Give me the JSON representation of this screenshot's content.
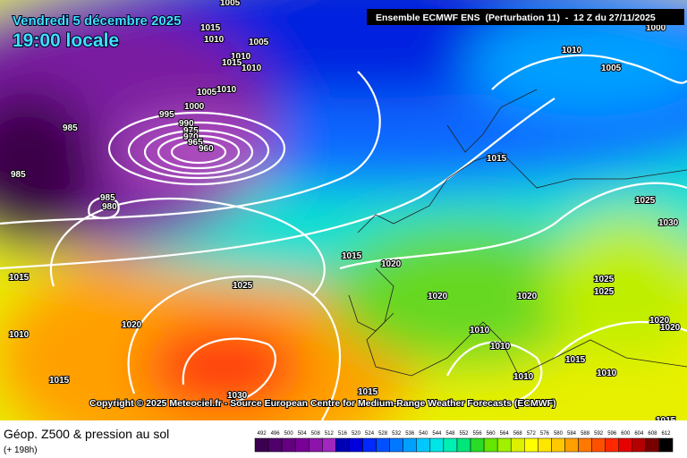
{
  "header": {
    "date": "Vendredi 5 décembre 2025",
    "time": "19:00 locale",
    "model": "Ensemble ECMWF ENS  (Perturbation 11)  -  12 Z du 27/11/2025"
  },
  "isobars": [
    1005,
    1015,
    1010,
    1005,
    1010,
    1015,
    1010,
    1005,
    1010,
    1000,
    995,
    990,
    985,
    975,
    970,
    965,
    960,
    985,
    985,
    980,
    1015,
    1010,
    1005,
    1000,
    1025,
    1030,
    1015,
    1020,
    1025,
    1020,
    1020,
    1025,
    1025,
    1020,
    1010,
    1010,
    1010,
    1020,
    1020,
    1015,
    1010,
    1010,
    1015,
    1030,
    1015,
    1015,
    1015
  ],
  "copyright": "Copyright © 2025 Meteociel.fr - Source European Centre for Medium-Range Weather Forecasts (ECMWF)",
  "footer": {
    "title": "Géop. Z500 & pression au sol",
    "lead": "(+ 198h)"
  },
  "scale": {
    "values": [
      492,
      496,
      500,
      504,
      508,
      512,
      516,
      520,
      524,
      528,
      532,
      536,
      540,
      544,
      548,
      552,
      556,
      560,
      564,
      568,
      572,
      576,
      580,
      584,
      588,
      592,
      596,
      600,
      604,
      608,
      612
    ],
    "colors": [
      "#3c0050",
      "#50006a",
      "#640080",
      "#780096",
      "#8c14aa",
      "#a028be",
      "#0000b4",
      "#0000dc",
      "#0028ff",
      "#0050ff",
      "#0078ff",
      "#00a0ff",
      "#00c8ff",
      "#00e6e6",
      "#00f0b4",
      "#00e678",
      "#28dc28",
      "#64e600",
      "#a0f000",
      "#dcf000",
      "#ffff00",
      "#ffe600",
      "#ffc800",
      "#ffa000",
      "#ff7800",
      "#ff5000",
      "#ff2800",
      "#e60000",
      "#b40000",
      "#780000",
      "#000000"
    ]
  }
}
